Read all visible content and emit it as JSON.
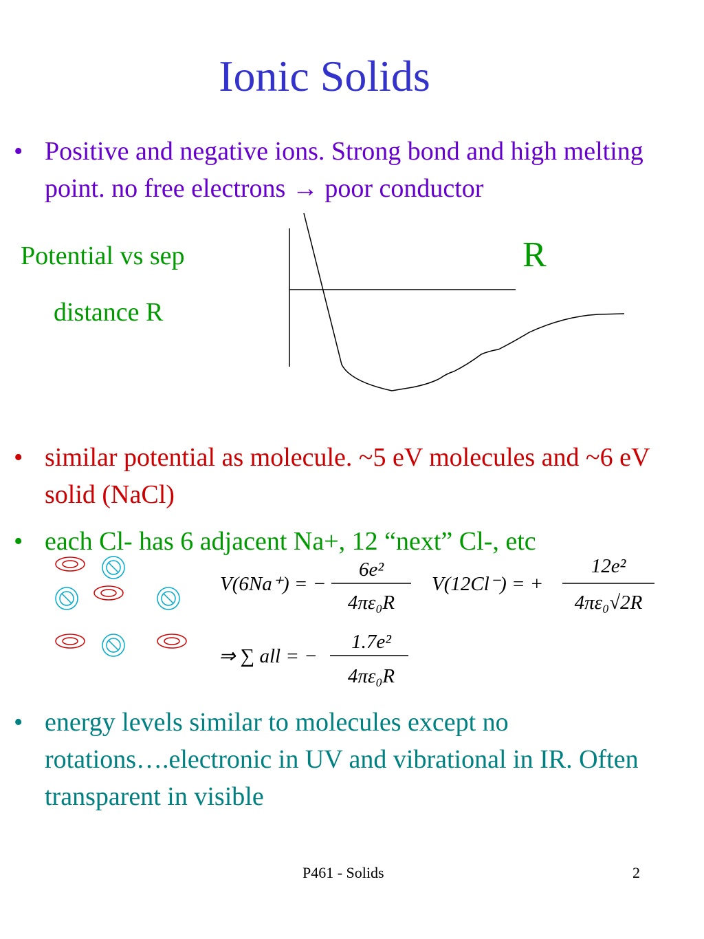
{
  "title": "Ionic Solids",
  "bullets": [
    {
      "parts": [
        "Positive and negative ions. Strong bond and high melting point.  no free electrons",
        "→",
        "poor conductor"
      ]
    },
    {
      "parts": [
        "similar potential as molecule. ~5 eV molecules and ~6 eV solid (NaCl)"
      ]
    },
    {
      "parts": [
        "each Cl- has 6 adjacent Na+, 12 “next” Cl-, etc"
      ]
    },
    {
      "parts": [
        "energy levels similar to molecules except no rotations….electronic in UV and vibrational in IR. Often transparent in visible"
      ]
    }
  ],
  "plot": {
    "label_line1": "Potential vs sep",
    "label_line2": "distance R",
    "axis_label": "R"
  },
  "equations": [
    {
      "lhs": "V(6Na⁺) = −",
      "numerator": "6e²",
      "denominator": "4πε₀R"
    },
    {
      "lhs": "V(12Cl⁻) = +",
      "numerator": "12e²",
      "denominator": "4πε₀√2R"
    },
    {
      "lhs": "⇒ ∑ all = −",
      "numerator": "1.7e²",
      "denominator": "4πε₀R"
    }
  ],
  "footer": {
    "course": "P461 - Solids",
    "page": "2"
  }
}
